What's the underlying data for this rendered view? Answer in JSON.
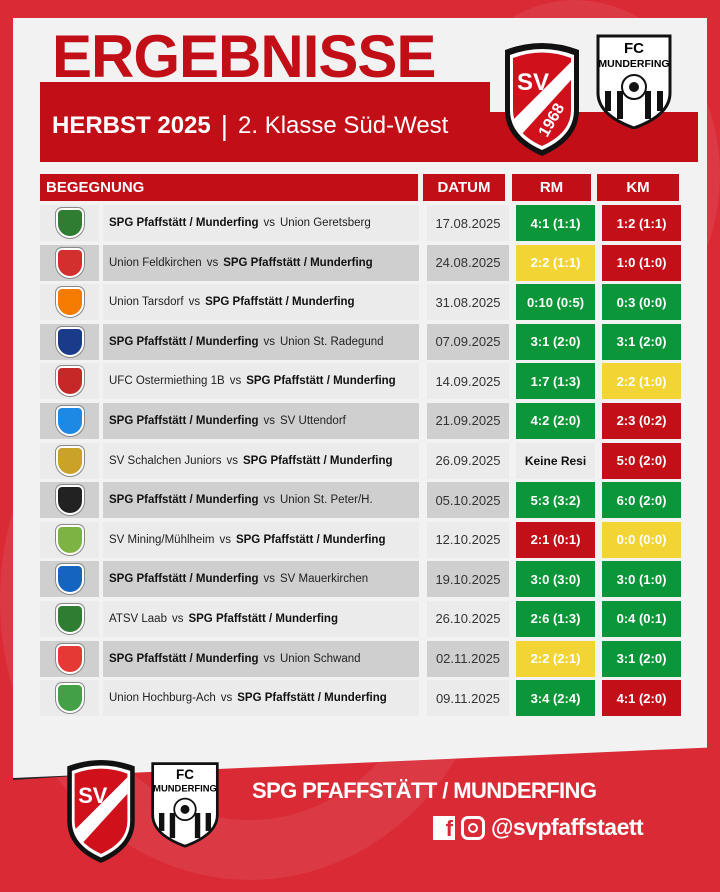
{
  "header": {
    "title": "ERGEBNISSE",
    "season": "HERBST 2025",
    "separator": "|",
    "league": "2. Klasse Süd-West"
  },
  "logos": {
    "sv": "SV PFAFFSTÄTT 1968",
    "fc": "FC MUNDERFING"
  },
  "table": {
    "columns": [
      "BEGEGNUNG",
      "DATUM",
      "RM",
      "KM"
    ],
    "rows": [
      {
        "home": "SPG Pfaffstätt / Munderfing",
        "away": "Union Geretsberg",
        "spg_home": true,
        "date": "17.08.2025",
        "rm": "4:1 (1:1)",
        "rm_result": "win",
        "km": "1:2 (1:1)",
        "km_result": "loss",
        "logo_color": "#2e7d32"
      },
      {
        "home": "Union Feldkirchen",
        "away": "SPG Pfaffstätt / Munderfing",
        "spg_home": false,
        "date": "24.08.2025",
        "rm": "2:2 (1:1)",
        "rm_result": "draw",
        "km": "1:0 (1:0)",
        "km_result": "loss",
        "logo_color": "#d32f2f"
      },
      {
        "home": "Union Tarsdorf",
        "away": "SPG Pfaffstätt / Munderfing",
        "spg_home": false,
        "date": "31.08.2025",
        "rm": "0:10 (0:5)",
        "rm_result": "win",
        "km": "0:3 (0:0)",
        "km_result": "win",
        "logo_color": "#f57c00"
      },
      {
        "home": "SPG Pfaffstätt / Munderfing",
        "away": "Union St. Radegund",
        "spg_home": true,
        "date": "07.09.2025",
        "rm": "3:1 (2:0)",
        "rm_result": "win",
        "km": "3:1 (2:0)",
        "km_result": "win",
        "logo_color": "#1a3a8a"
      },
      {
        "home": "UFC Ostermiething 1B",
        "away": "SPG Pfaffstätt / Munderfing",
        "spg_home": false,
        "date": "14.09.2025",
        "rm": "1:7 (1:3)",
        "rm_result": "win",
        "km": "2:2 (1:0)",
        "km_result": "draw",
        "logo_color": "#c62828"
      },
      {
        "home": "SPG Pfaffstätt / Munderfing",
        "away": "SV Uttendorf",
        "spg_home": true,
        "date": "21.09.2025",
        "rm": "4:2 (2:0)",
        "rm_result": "win",
        "km": "2:3 (0:2)",
        "km_result": "loss",
        "logo_color": "#1e88e5"
      },
      {
        "home": "SV Schalchen Juniors",
        "away": "SPG Pfaffstätt / Munderfing",
        "spg_home": false,
        "date": "26.09.2025",
        "rm": "Keine Resi",
        "rm_result": "none",
        "km": "5:0 (2:0)",
        "km_result": "loss",
        "logo_color": "#c9a227"
      },
      {
        "home": "SPG Pfaffstätt / Munderfing",
        "away": "Union St. Peter/H.",
        "spg_home": true,
        "date": "05.10.2025",
        "rm": "5:3 (3:2)",
        "rm_result": "win",
        "km": "6:0 (2:0)",
        "km_result": "win",
        "logo_color": "#222222"
      },
      {
        "home": "SV Mining/Mühlheim",
        "away": "SPG Pfaffstätt / Munderfing",
        "spg_home": false,
        "date": "12.10.2025",
        "rm": "2:1 (0:1)",
        "rm_result": "loss",
        "km": "0:0 (0:0)",
        "km_result": "draw",
        "logo_color": "#7cb342"
      },
      {
        "home": "SPG Pfaffstätt / Munderfing",
        "away": "SV Mauerkirchen",
        "spg_home": true,
        "date": "19.10.2025",
        "rm": "3:0 (3:0)",
        "rm_result": "win",
        "km": "3:0 (1:0)",
        "km_result": "win",
        "logo_color": "#1565c0"
      },
      {
        "home": "ATSV Laab",
        "away": "SPG Pfaffstätt / Munderfing",
        "spg_home": false,
        "date": "26.10.2025",
        "rm": "2:6 (1:3)",
        "rm_result": "win",
        "km": "0:4 (0:1)",
        "km_result": "win",
        "logo_color": "#2e7d32"
      },
      {
        "home": "SPG Pfaffstätt / Munderfing",
        "away": "Union Schwand",
        "spg_home": true,
        "date": "02.11.2025",
        "rm": "2:2 (2:1)",
        "rm_result": "draw",
        "km": "3:1 (2:0)",
        "km_result": "win",
        "logo_color": "#e53935"
      },
      {
        "home": "Union Hochburg-Ach",
        "away": "SPG Pfaffstätt / Munderfing",
        "spg_home": false,
        "date": "09.11.2025",
        "rm": "3:4 (2:4)",
        "rm_result": "win",
        "km": "4:1 (2:0)",
        "km_result": "loss",
        "logo_color": "#43a047"
      }
    ]
  },
  "colors": {
    "brand_red": "#c10e17",
    "win": "#0b963a",
    "loss": "#c30f18",
    "draw": "#f2d535"
  },
  "footer": {
    "club_name": "SPG PFAFFSTÄTT / MUNDERFING",
    "facebook_icon": "f",
    "handle": "@svpfaffstaett"
  }
}
